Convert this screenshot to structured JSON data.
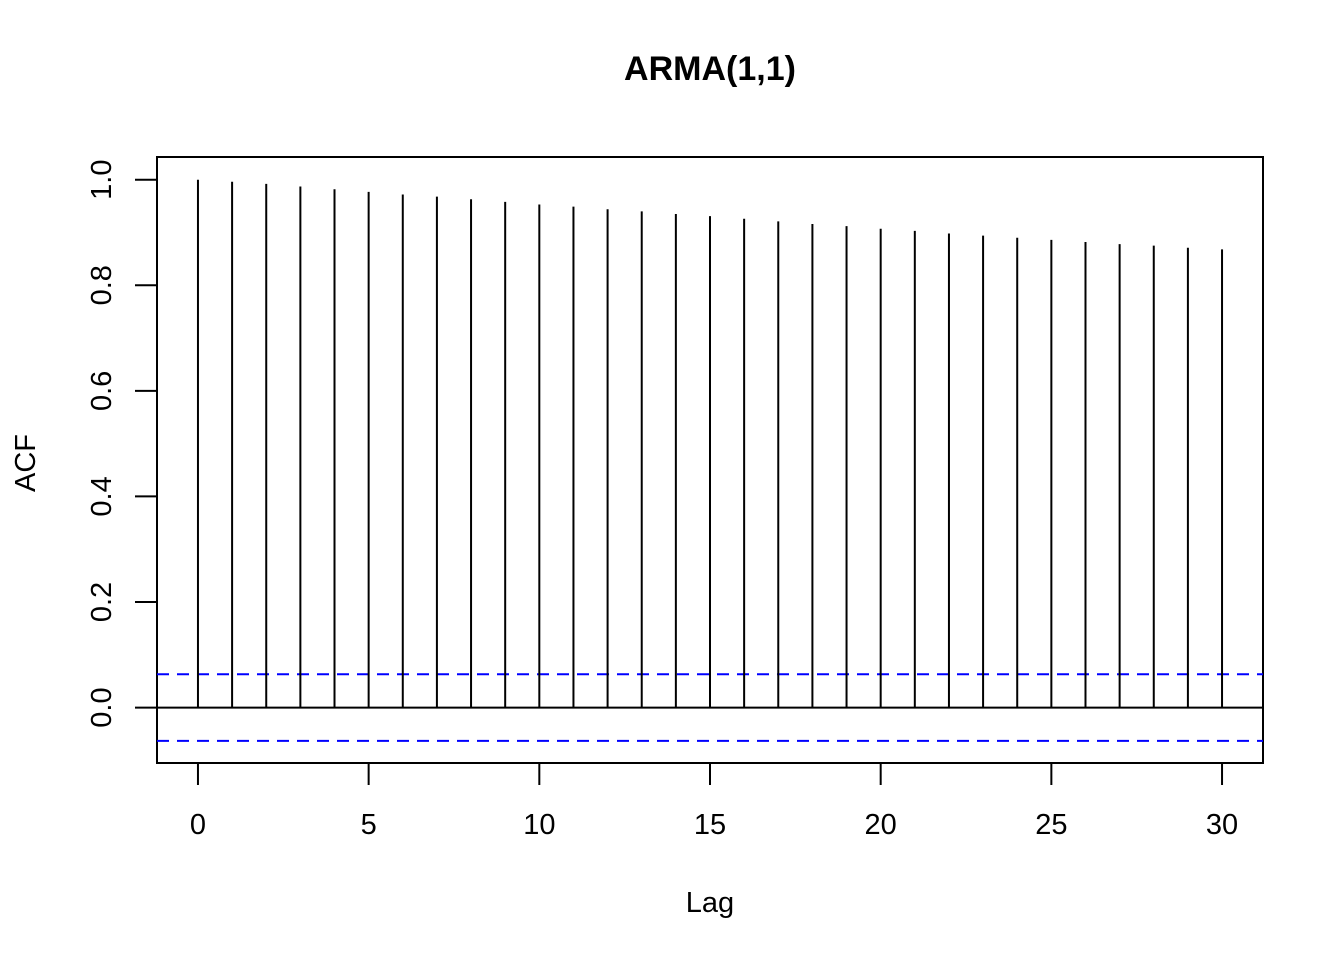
{
  "chart_data": {
    "type": "bar",
    "subtype": "acf-spikes",
    "title": "ARMA(1,1)",
    "xlabel": "Lag",
    "ylabel": "ACF",
    "x": [
      0,
      1,
      2,
      3,
      4,
      5,
      6,
      7,
      8,
      9,
      10,
      11,
      12,
      13,
      14,
      15,
      16,
      17,
      18,
      19,
      20,
      21,
      22,
      23,
      24,
      25,
      26,
      27,
      28,
      29,
      30
    ],
    "values": [
      1.0,
      0.996,
      0.992,
      0.987,
      0.982,
      0.977,
      0.972,
      0.968,
      0.963,
      0.958,
      0.953,
      0.949,
      0.944,
      0.94,
      0.935,
      0.931,
      0.926,
      0.921,
      0.916,
      0.912,
      0.907,
      0.903,
      0.898,
      0.894,
      0.89,
      0.886,
      0.882,
      0.878,
      0.875,
      0.871,
      0.868
    ],
    "xlim": [
      -1.2,
      31.2
    ],
    "ylim": [
      -0.105,
      1.043
    ],
    "xticks": [
      "0",
      "5",
      "10",
      "15",
      "20",
      "25",
      "30"
    ],
    "xtick_values": [
      0,
      5,
      10,
      15,
      20,
      25,
      30
    ],
    "yticks": [
      "0.0",
      "0.2",
      "0.4",
      "0.6",
      "0.8",
      "1.0"
    ],
    "ytick_values": [
      0,
      0.2,
      0.4,
      0.6,
      0.8,
      1.0
    ],
    "confidence_band": 0.0632,
    "confidence_color": "#0000ff",
    "spike_color": "#000000",
    "zero_line": true,
    "grid": false,
    "legend": "none"
  }
}
